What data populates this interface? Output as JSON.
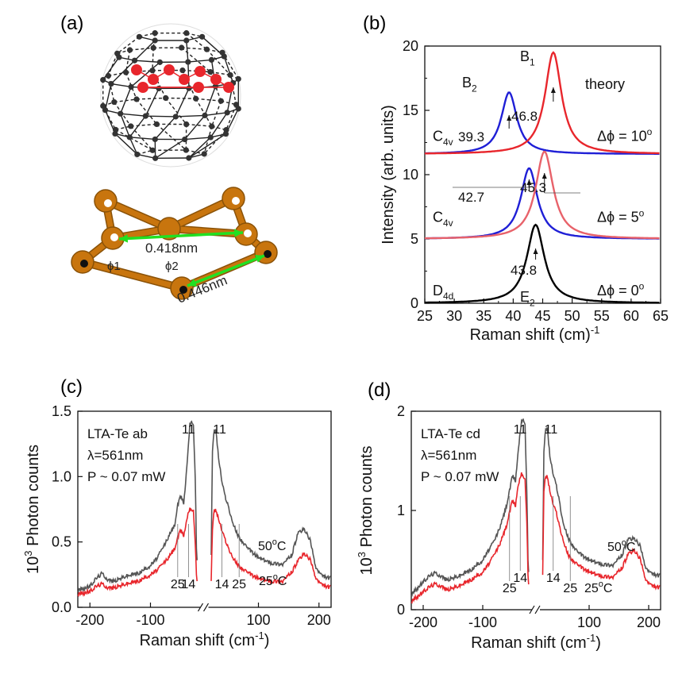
{
  "panel_labels": {
    "a": "(a)",
    "b": "(b)",
    "c": "(c)",
    "d": "(d)"
  },
  "structure": {
    "dist1": "0.418nm",
    "dist2": "0.446nm",
    "angle1": "ϕ1",
    "angle2": "ϕ2",
    "colors": {
      "cage_atom": "#333333",
      "te_atom": "#e8262c",
      "ring": "#c8750e",
      "arrow": "#22e022"
    }
  },
  "chart_data": [
    {
      "id": "b",
      "type": "line",
      "title": "",
      "xlabel": "Raman shift (cm)",
      "xlabel_sup": "-1",
      "ylabel": "Intensity (arb. units)",
      "xlim": [
        25,
        65
      ],
      "ylim": [
        0,
        20
      ],
      "xticks": [
        25,
        30,
        35,
        40,
        45,
        50,
        55,
        60,
        65
      ],
      "yticks": [
        0,
        5,
        10,
        15,
        20
      ],
      "annotation_theory": "theory",
      "series": [
        {
          "group": "C4v Δϕ=10°",
          "color": "#1f1fd6",
          "baseline": 11.6,
          "center": 39.3,
          "amp": 4.8,
          "width": 1.6
        },
        {
          "group": "C4v Δϕ=10°",
          "color": "#e8262c",
          "baseline": 11.6,
          "center": 46.8,
          "amp": 7.9,
          "width": 1.7
        },
        {
          "group": "C4v Δϕ=5°",
          "color": "#1f1fd6",
          "baseline": 5.0,
          "center": 42.7,
          "amp": 5.5,
          "width": 1.7
        },
        {
          "group": "C4v Δϕ=5°",
          "color": "#e8626a",
          "baseline": 5.0,
          "center": 45.3,
          "amp": 6.8,
          "width": 1.8
        },
        {
          "group": "D4d Δϕ=0°",
          "color": "#000000",
          "baseline": 0.0,
          "center": 43.8,
          "amp": 6.1,
          "width": 1.8
        }
      ],
      "rows": [
        {
          "sym": "C",
          "sub": "4v",
          "dphi": "Δϕ = 10",
          "deg": "o",
          "y": 13.0
        },
        {
          "sym": "C",
          "sub": "4v",
          "dphi": "Δϕ = 5",
          "deg": "o",
          "y": 6.7
        },
        {
          "sym": "D",
          "sub": "4d",
          "dphi": "Δϕ = 0",
          "deg": "o",
          "y": 1.0
        }
      ],
      "peak_labels": {
        "B2": {
          "sym": "B",
          "sub": "2"
        },
        "B1": {
          "sym": "B",
          "sub": "1"
        },
        "E2": {
          "sym": "E",
          "sub": "2"
        },
        "v393": "39.3",
        "v468": "46.8",
        "v427": "42.7",
        "v453": "45.3",
        "v438": "43.8"
      }
    },
    {
      "id": "c",
      "type": "line",
      "ylabel": "10",
      "ylabel_sup": "3",
      "ylabel_rest": " Photon counts",
      "xlabel": "Raman shift (cm",
      "xlabel_sup": "-1",
      "xlabel_end": ")",
      "ylim": [
        0,
        1.5
      ],
      "yticks": [
        0.0,
        0.5,
        1.0,
        1.5
      ],
      "ytick_labels": [
        "0.0",
        "0.5",
        "1.0",
        "1.5"
      ],
      "xticks": [
        -200,
        -100,
        100,
        200
      ],
      "info": [
        "LTA-Te ab",
        "λ=561nm",
        "P ~ 0.07 mW"
      ],
      "temp_hi": "50",
      "temp_lo": "25",
      "temp_unit": "C",
      "deg": "o",
      "peaks_labels": {
        "l11": "11",
        "r11": "11",
        "l25": "25",
        "l14": "14",
        "r14": "14",
        "r25": "25"
      },
      "series": [
        {
          "name": "50°C",
          "color": "#555555",
          "neg": [
            [
              -220,
              0.13
            ],
            [
              -200,
              0.16
            ],
            [
              -190,
              0.22
            ],
            [
              -180,
              0.26
            ],
            [
              -170,
              0.21
            ],
            [
              -160,
              0.2
            ],
            [
              -140,
              0.24
            ],
            [
              -120,
              0.26
            ],
            [
              -100,
              0.32
            ],
            [
              -90,
              0.37
            ],
            [
              -80,
              0.45
            ],
            [
              -70,
              0.54
            ],
            [
              -60,
              0.63
            ],
            [
              -55,
              0.78
            ],
            [
              -50,
              0.85
            ],
            [
              -45,
              0.8
            ],
            [
              -42,
              0.95
            ],
            [
              -38,
              1.2
            ],
            [
              -35,
              1.4
            ],
            [
              -32,
              1.43
            ],
            [
              -29,
              1.38
            ],
            [
              -26,
              1.0
            ],
            [
              -24,
              0.45
            ],
            [
              -22,
              0.3
            ]
          ],
          "pos": [
            [
              22,
              0.4
            ],
            [
              24,
              1.2
            ],
            [
              27,
              1.36
            ],
            [
              30,
              1.35
            ],
            [
              34,
              1.15
            ],
            [
              40,
              0.95
            ],
            [
              45,
              0.85
            ],
            [
              50,
              0.78
            ],
            [
              55,
              0.68
            ],
            [
              65,
              0.56
            ],
            [
              80,
              0.46
            ],
            [
              100,
              0.38
            ],
            [
              120,
              0.34
            ],
            [
              140,
              0.33
            ],
            [
              155,
              0.4
            ],
            [
              165,
              0.56
            ],
            [
              175,
              0.6
            ],
            [
              185,
              0.52
            ],
            [
              195,
              0.3
            ],
            [
              205,
              0.24
            ],
            [
              220,
              0.22
            ]
          ]
        },
        {
          "name": "25°C",
          "color": "#e8262c",
          "neg": [
            [
              -220,
              0.1
            ],
            [
              -200,
              0.12
            ],
            [
              -190,
              0.16
            ],
            [
              -180,
              0.18
            ],
            [
              -170,
              0.15
            ],
            [
              -160,
              0.15
            ],
            [
              -140,
              0.18
            ],
            [
              -120,
              0.2
            ],
            [
              -100,
              0.25
            ],
            [
              -90,
              0.28
            ],
            [
              -80,
              0.33
            ],
            [
              -70,
              0.38
            ],
            [
              -60,
              0.45
            ],
            [
              -55,
              0.53
            ],
            [
              -50,
              0.59
            ],
            [
              -45,
              0.55
            ],
            [
              -42,
              0.62
            ],
            [
              -38,
              0.72
            ],
            [
              -35,
              0.76
            ],
            [
              -32,
              0.75
            ],
            [
              -29,
              0.73
            ],
            [
              -26,
              0.5
            ],
            [
              -24,
              0.25
            ],
            [
              -22,
              0.18
            ]
          ],
          "pos": [
            [
              22,
              0.2
            ],
            [
              24,
              0.6
            ],
            [
              27,
              0.75
            ],
            [
              30,
              0.74
            ],
            [
              34,
              0.68
            ],
            [
              40,
              0.58
            ],
            [
              45,
              0.52
            ],
            [
              50,
              0.46
            ],
            [
              55,
              0.4
            ],
            [
              65,
              0.33
            ],
            [
              80,
              0.27
            ],
            [
              100,
              0.22
            ],
            [
              120,
              0.2
            ],
            [
              140,
              0.2
            ],
            [
              155,
              0.27
            ],
            [
              165,
              0.35
            ],
            [
              175,
              0.41
            ],
            [
              185,
              0.37
            ],
            [
              195,
              0.22
            ],
            [
              205,
              0.17
            ],
            [
              220,
              0.15
            ]
          ]
        }
      ]
    },
    {
      "id": "d",
      "type": "line",
      "ylabel": "10",
      "ylabel_sup": "3",
      "ylabel_rest": " Photon counts",
      "xlabel": "Raman shift (cm",
      "xlabel_sup": "-1",
      "xlabel_end": ")",
      "ylim": [
        0,
        2
      ],
      "yticks": [
        0,
        1,
        2
      ],
      "ytick_labels": [
        "0",
        "1",
        "2"
      ],
      "xticks": [
        -200,
        -100,
        100,
        200
      ],
      "info": [
        "LTA-Te cd",
        "λ=561nm",
        "P ~ 0.07 mW"
      ],
      "temp_hi": "50",
      "temp_lo": "25",
      "temp_unit": "C",
      "deg": "o",
      "peaks_labels": {
        "l11": "11",
        "r11": "11",
        "l25": "25",
        "l14": "14",
        "r14": "14",
        "r25": "25"
      },
      "series": [
        {
          "name": "50°C",
          "color": "#555555",
          "neg": [
            [
              -220,
              0.15
            ],
            [
              -200,
              0.28
            ],
            [
              -190,
              0.34
            ],
            [
              -180,
              0.37
            ],
            [
              -170,
              0.34
            ],
            [
              -160,
              0.3
            ],
            [
              -140,
              0.34
            ],
            [
              -120,
              0.4
            ],
            [
              -100,
              0.5
            ],
            [
              -90,
              0.6
            ],
            [
              -80,
              0.7
            ],
            [
              -70,
              0.85
            ],
            [
              -60,
              1.05
            ],
            [
              -55,
              1.2
            ],
            [
              -50,
              1.35
            ],
            [
              -45,
              1.3
            ],
            [
              -42,
              1.5
            ],
            [
              -38,
              1.75
            ],
            [
              -35,
              1.9
            ],
            [
              -32,
              1.93
            ],
            [
              -29,
              1.85
            ],
            [
              -26,
              1.2
            ],
            [
              -24,
              0.5
            ],
            [
              -22,
              0.3
            ]
          ],
          "pos": [
            [
              22,
              0.5
            ],
            [
              24,
              1.6
            ],
            [
              27,
              1.83
            ],
            [
              30,
              1.82
            ],
            [
              34,
              1.55
            ],
            [
              40,
              1.35
            ],
            [
              45,
              1.25
            ],
            [
              50,
              1.1
            ],
            [
              55,
              0.9
            ],
            [
              65,
              0.72
            ],
            [
              80,
              0.58
            ],
            [
              100,
              0.5
            ],
            [
              120,
              0.46
            ],
            [
              140,
              0.45
            ],
            [
              155,
              0.55
            ],
            [
              165,
              0.7
            ],
            [
              175,
              0.72
            ],
            [
              185,
              0.65
            ],
            [
              195,
              0.42
            ],
            [
              205,
              0.36
            ],
            [
              220,
              0.34
            ]
          ]
        },
        {
          "name": "25°C",
          "color": "#e8262c",
          "neg": [
            [
              -220,
              0.08
            ],
            [
              -200,
              0.18
            ],
            [
              -190,
              0.23
            ],
            [
              -180,
              0.26
            ],
            [
              -170,
              0.24
            ],
            [
              -160,
              0.2
            ],
            [
              -140,
              0.24
            ],
            [
              -120,
              0.3
            ],
            [
              -100,
              0.38
            ],
            [
              -90,
              0.46
            ],
            [
              -80,
              0.56
            ],
            [
              -70,
              0.68
            ],
            [
              -60,
              0.85
            ],
            [
              -55,
              0.98
            ],
            [
              -50,
              1.1
            ],
            [
              -45,
              1.05
            ],
            [
              -42,
              1.2
            ],
            [
              -38,
              1.32
            ],
            [
              -35,
              1.38
            ],
            [
              -32,
              1.35
            ],
            [
              -29,
              1.3
            ],
            [
              -26,
              0.9
            ],
            [
              -24,
              0.35
            ],
            [
              -22,
              0.2
            ]
          ],
          "pos": [
            [
              22,
              0.35
            ],
            [
              24,
              1.2
            ],
            [
              27,
              1.35
            ],
            [
              30,
              1.34
            ],
            [
              34,
              1.2
            ],
            [
              40,
              1.05
            ],
            [
              45,
              0.98
            ],
            [
              50,
              0.85
            ],
            [
              55,
              0.72
            ],
            [
              65,
              0.55
            ],
            [
              80,
              0.45
            ],
            [
              100,
              0.38
            ],
            [
              120,
              0.34
            ],
            [
              140,
              0.33
            ],
            [
              155,
              0.42
            ],
            [
              165,
              0.55
            ],
            [
              175,
              0.6
            ],
            [
              185,
              0.52
            ],
            [
              195,
              0.3
            ],
            [
              205,
              0.24
            ],
            [
              220,
              0.22
            ]
          ]
        }
      ]
    }
  ]
}
